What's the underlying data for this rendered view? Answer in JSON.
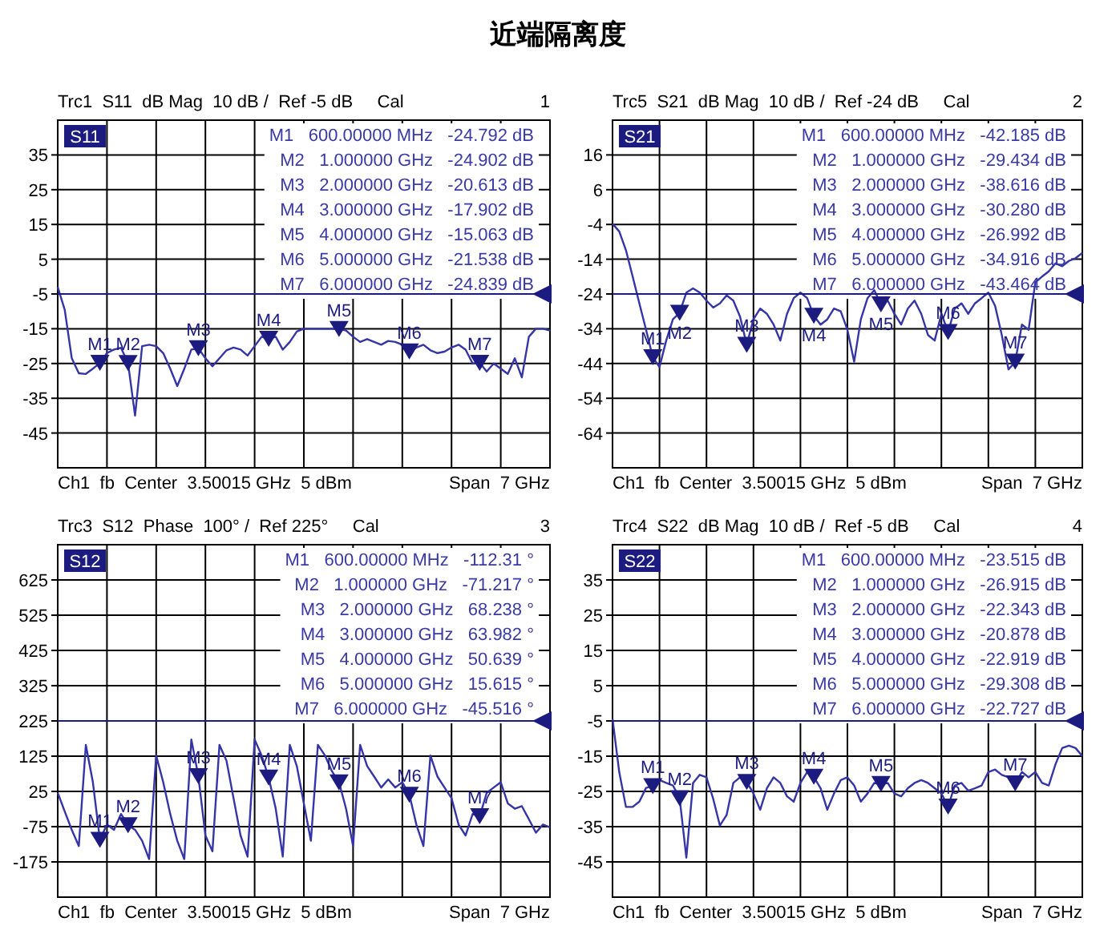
{
  "chart_data": [
    {
      "type": "other",
      "title": "近端隔离度"
    },
    {
      "type": "line",
      "title": "Trc1  S11  dB Mag  10 dB /  Ref -5 dB     Cal",
      "ylim": [
        -55,
        45
      ],
      "yticks": [
        35,
        25,
        15,
        5,
        -5,
        -15,
        -25,
        -35,
        -45
      ],
      "grid": true,
      "legend": "top left",
      "categories": [
        null,
        null,
        null,
        null,
        null,
        null,
        null,
        null,
        null,
        null,
        null,
        null,
        null,
        null,
        null,
        null,
        null,
        null,
        null,
        null,
        null,
        null,
        null,
        null,
        null,
        null,
        null,
        null,
        null,
        null,
        null,
        null,
        null,
        null,
        null,
        null,
        null,
        null,
        null,
        null,
        null,
        null,
        null,
        null,
        null,
        null,
        null,
        null,
        null,
        null,
        null,
        null,
        null,
        null,
        null,
        null,
        null,
        null,
        null,
        null,
        null,
        null,
        null,
        null,
        null,
        null,
        null,
        null,
        null,
        null,
        null
      ],
      "series": [
        {
          "name": "S11",
          "type": "line",
          "color": "#3535a8",
          "values": [
            -3,
            -9.6,
            -23.5,
            -27.8,
            -28,
            -26.5,
            -24.8,
            -22,
            -21,
            -20.5,
            -24.9,
            -40,
            -20,
            -19.6,
            -20,
            -22,
            -26.5,
            -31.5,
            -26.5,
            -21,
            -20.6,
            -23.5,
            -25.8,
            -23.5,
            -21.2,
            -20.4,
            -21,
            -22.7,
            -20,
            -17.3,
            -17.9,
            -17.3,
            -21,
            -18.8,
            -15.8,
            -15,
            -15,
            -15,
            -15,
            -15,
            -15.1,
            -15.5,
            -17.3,
            -18.8,
            -18,
            -18.8,
            -19.6,
            -18.5,
            -18.8,
            -19.6,
            -21.5,
            -20.4,
            -19.6,
            -21.2,
            -22,
            -21.6,
            -20.4,
            -19.6,
            -21,
            -25,
            -24.8,
            -27.3,
            -25,
            -26.5,
            -28,
            -23.5,
            -29,
            -17.3,
            -15,
            -15,
            -15.5
          ]
        },
        {
          "type": "scatter",
          "marker": "triangle",
          "color": "#1c1c80",
          "values": [
            null,
            null,
            null,
            null,
            null,
            null,
            -24.792,
            null,
            null,
            null,
            -24.902,
            null,
            null,
            null,
            null,
            null,
            null,
            null,
            null,
            null,
            -20.613,
            null,
            null,
            null,
            null,
            null,
            null,
            null,
            null,
            null,
            -17.902,
            null,
            null,
            null,
            null,
            null,
            null,
            null,
            null,
            null,
            -15.063,
            null,
            null,
            null,
            null,
            null,
            null,
            null,
            null,
            null,
            -21.538,
            null,
            null,
            null,
            null,
            null,
            null,
            null,
            null,
            null,
            -24.839,
            null,
            null,
            null,
            null,
            null,
            null,
            null,
            null,
            null,
            null
          ],
          "value_labels": [
            null,
            null,
            null,
            null,
            null,
            null,
            "M1",
            null,
            null,
            null,
            "M2",
            null,
            null,
            null,
            null,
            null,
            null,
            null,
            null,
            null,
            "M3",
            null,
            null,
            null,
            null,
            null,
            null,
            null,
            null,
            null,
            "M4",
            null,
            null,
            null,
            null,
            null,
            null,
            null,
            null,
            null,
            "M5",
            null,
            null,
            null,
            null,
            null,
            null,
            null,
            null,
            null,
            "M6",
            null,
            null,
            null,
            null,
            null,
            null,
            null,
            null,
            null,
            "M7",
            null,
            null,
            null,
            null,
            null,
            null,
            null,
            null,
            null,
            null
          ]
        }
      ],
      "ref_lines": [
        {
          "axis": "y",
          "value": -5,
          "color": "#1c1c80"
        }
      ],
      "annotations": [
        "1",
        "M1   600.00000 MHz   -24.792 dB",
        "M2   1.000000 GHz   -24.902 dB",
        "M3   2.000000 GHz   -20.613 dB",
        "M4   3.000000 GHz   -17.902 dB",
        "M5   4.000000 GHz   -15.063 dB",
        "M6   5.000000 GHz   -21.538 dB",
        "M7   6.000000 GHz   -24.839 dB",
        "Ch1  fb  Center  3.50015 GHz  5 dBm",
        "Span  7 GHz"
      ]
    },
    {
      "type": "line",
      "title": "Trc5  S21  dB Mag  10 dB /  Ref -24 dB     Cal",
      "ylim": [
        -74,
        26
      ],
      "yticks": [
        16,
        6,
        -4,
        -14,
        -24,
        -34,
        -44,
        -54,
        -64
      ],
      "grid": true,
      "legend": "top left",
      "categories": [
        null,
        null,
        null,
        null,
        null,
        null,
        null,
        null,
        null,
        null,
        null,
        null,
        null,
        null,
        null,
        null,
        null,
        null,
        null,
        null,
        null,
        null,
        null,
        null,
        null,
        null,
        null,
        null,
        null,
        null,
        null,
        null,
        null,
        null,
        null,
        null,
        null,
        null,
        null,
        null,
        null,
        null,
        null,
        null,
        null,
        null,
        null,
        null,
        null,
        null,
        null,
        null,
        null,
        null,
        null,
        null,
        null,
        null,
        null,
        null,
        null,
        null,
        null,
        null,
        null,
        null,
        null,
        null,
        null,
        null,
        null
      ],
      "series": [
        {
          "name": "S21",
          "type": "line",
          "color": "#3535a8",
          "values": [
            -3.8,
            -6,
            -11.4,
            -19,
            -26.7,
            -34.3,
            -42.2,
            -45,
            -37.4,
            -31.3,
            -29.4,
            -23.6,
            -22.4,
            -23.6,
            -25.9,
            -27.9,
            -26.7,
            -24.4,
            -25.9,
            -30.5,
            -38.6,
            -31.3,
            -28.2,
            -29.7,
            -32.8,
            -37.4,
            -29.7,
            -25.2,
            -23.6,
            -25.2,
            -30.3,
            -32.8,
            -31.3,
            -28.2,
            -29,
            -34.3,
            -43.5,
            -31.3,
            -25.2,
            -22.9,
            -27,
            -25.9,
            -29.7,
            -32.8,
            -28.2,
            -25.9,
            -29.7,
            -35.8,
            -37.4,
            -29.7,
            -34.9,
            -28.2,
            -26.7,
            -29.7,
            -26.7,
            -25.2,
            -23.6,
            -27.4,
            -35.8,
            -45.7,
            -43.5,
            -32.8,
            -34.3,
            -20.6,
            -19,
            -17.5,
            -15.2,
            -16,
            -14.5,
            -13.7,
            -12.2
          ]
        },
        {
          "type": "scatter",
          "marker": "triangle",
          "color": "#1c1c80",
          "values": [
            null,
            null,
            null,
            null,
            null,
            null,
            -42.185,
            null,
            null,
            null,
            -29.434,
            null,
            null,
            null,
            null,
            null,
            null,
            null,
            null,
            null,
            -38.616,
            null,
            null,
            null,
            null,
            null,
            null,
            null,
            null,
            null,
            -30.28,
            null,
            null,
            null,
            null,
            null,
            null,
            null,
            null,
            null,
            -26.992,
            null,
            null,
            null,
            null,
            null,
            null,
            null,
            null,
            null,
            -34.916,
            null,
            null,
            null,
            null,
            null,
            null,
            null,
            null,
            null,
            -43.464,
            null,
            null,
            null,
            null,
            null,
            null,
            null,
            null,
            null,
            null
          ],
          "value_labels": [
            null,
            null,
            null,
            null,
            null,
            null,
            "M1",
            null,
            null,
            null,
            "M2",
            null,
            null,
            null,
            null,
            null,
            null,
            null,
            null,
            null,
            "M3",
            null,
            null,
            null,
            null,
            null,
            null,
            null,
            null,
            null,
            "M4",
            null,
            null,
            null,
            null,
            null,
            null,
            null,
            null,
            null,
            "M5",
            null,
            null,
            null,
            null,
            null,
            null,
            null,
            null,
            null,
            "M6",
            null,
            null,
            null,
            null,
            null,
            null,
            null,
            null,
            null,
            "M7",
            null,
            null,
            null,
            null,
            null,
            null,
            null,
            null,
            null,
            null
          ]
        }
      ],
      "ref_lines": [
        {
          "axis": "y",
          "value": -24,
          "color": "#1c1c80"
        }
      ],
      "annotations": [
        "2",
        "M1   600.00000 MHz   -42.185 dB",
        "M2   1.000000 GHz   -29.434 dB",
        "M3   2.000000 GHz   -38.616 dB",
        "M4   3.000000 GHz   -30.280 dB",
        "M5   4.000000 GHz   -26.992 dB",
        "M6   5.000000 GHz   -34.916 dB",
        "M7   6.000000 GHz   -43.464 dB",
        "Ch1  fb  Center  3.50015 GHz  5 dBm",
        "Span  7 GHz"
      ]
    },
    {
      "type": "line",
      "title": "Trc3  S12  Phase  100° /  Ref 225°     Cal",
      "ylim": [
        -275,
        725
      ],
      "yticks": [
        625,
        525,
        425,
        325,
        225,
        125,
        25,
        -75,
        -175
      ],
      "grid": true,
      "legend": "top left",
      "categories": [
        null,
        null,
        null,
        null,
        null,
        null,
        null,
        null,
        null,
        null,
        null,
        null,
        null,
        null,
        null,
        null,
        null,
        null,
        null,
        null,
        null,
        null,
        null,
        null,
        null,
        null,
        null,
        null,
        null,
        null,
        null,
        null,
        null,
        null,
        null,
        null,
        null,
        null,
        null,
        null,
        null,
        null,
        null,
        null,
        null,
        null,
        null,
        null,
        null,
        null,
        null,
        null,
        null,
        null,
        null,
        null,
        null,
        null,
        null,
        null,
        null,
        null,
        null,
        null,
        null,
        null,
        null,
        null,
        null,
        null,
        null
      ],
      "series": [
        {
          "name": "S12",
          "type": "line",
          "color": "#3535a8",
          "values": [
            21,
            -32,
            -84,
            -130,
            157,
            51,
            -112,
            -69,
            -84,
            -39,
            -71,
            -84,
            -115,
            -167,
            127,
            51,
            -39,
            -115,
            -167,
            172,
            68,
            -100,
            -145,
            157,
            112,
            6,
            -100,
            -160,
            172,
            127,
            64,
            -24,
            -160,
            157,
            97,
            -9,
            -115,
            157,
            127,
            82,
            51,
            -24,
            -130,
            157,
            97,
            67,
            36,
            59,
            36,
            51,
            16,
            -69,
            -130,
            127,
            67,
            36,
            6,
            -69,
            -100,
            -39,
            -46,
            21,
            36,
            51,
            -9,
            -24,
            -17,
            -54,
            -92,
            -69,
            -77
          ]
        },
        {
          "type": "scatter",
          "marker": "triangle",
          "color": "#1c1c80",
          "values": [
            null,
            null,
            null,
            null,
            null,
            null,
            -112.31,
            null,
            null,
            null,
            -71.217,
            null,
            null,
            null,
            null,
            null,
            null,
            null,
            null,
            null,
            68.238,
            null,
            null,
            null,
            null,
            null,
            null,
            null,
            null,
            null,
            63.982,
            null,
            null,
            null,
            null,
            null,
            null,
            null,
            null,
            null,
            50.639,
            null,
            null,
            null,
            null,
            null,
            null,
            null,
            null,
            null,
            15.615,
            null,
            null,
            null,
            null,
            null,
            null,
            null,
            null,
            null,
            -45.516,
            null,
            null,
            null,
            null,
            null,
            null,
            null,
            null,
            null,
            null
          ],
          "value_labels": [
            null,
            null,
            null,
            null,
            null,
            null,
            "M1",
            null,
            null,
            null,
            "M2",
            null,
            null,
            null,
            null,
            null,
            null,
            null,
            null,
            null,
            "M3",
            null,
            null,
            null,
            null,
            null,
            null,
            null,
            null,
            null,
            "M4",
            null,
            null,
            null,
            null,
            null,
            null,
            null,
            null,
            null,
            "M5",
            null,
            null,
            null,
            null,
            null,
            null,
            null,
            null,
            null,
            "M6",
            null,
            null,
            null,
            null,
            null,
            null,
            null,
            null,
            null,
            "M7",
            null,
            null,
            null,
            null,
            null,
            null,
            null,
            null,
            null,
            null
          ]
        }
      ],
      "ref_lines": [
        {
          "axis": "y",
          "value": 225,
          "color": "#1c1c80"
        }
      ],
      "annotations": [
        "3",
        "M1   600.00000 MHz   -112.31 °",
        "M2   1.000000 GHz   -71.217 °",
        "M3   2.000000 GHz   68.238 °",
        "M4   3.000000 GHz   63.982 °",
        "M5   4.000000 GHz   50.639 °",
        "M6   5.000000 GHz   15.615 °",
        "M7   6.000000 GHz   -45.516 °",
        "Ch1  fb  Center  3.50015 GHz  5 dBm",
        "Span  7 GHz"
      ]
    },
    {
      "type": "line",
      "title": "Trc4  S22  dB Mag  10 dB /  Ref -5 dB     Cal",
      "ylim": [
        -55,
        45
      ],
      "yticks": [
        35,
        25,
        15,
        5,
        -5,
        -15,
        -25,
        -35,
        -45
      ],
      "grid": true,
      "legend": "top left",
      "categories": [
        null,
        null,
        null,
        null,
        null,
        null,
        null,
        null,
        null,
        null,
        null,
        null,
        null,
        null,
        null,
        null,
        null,
        null,
        null,
        null,
        null,
        null,
        null,
        null,
        null,
        null,
        null,
        null,
        null,
        null,
        null,
        null,
        null,
        null,
        null,
        null,
        null,
        null,
        null,
        null,
        null,
        null,
        null,
        null,
        null,
        null,
        null,
        null,
        null,
        null,
        null,
        null,
        null,
        null,
        null,
        null,
        null,
        null,
        null,
        null,
        null,
        null,
        null,
        null,
        null,
        null,
        null,
        null,
        null,
        null,
        null
      ],
      "series": [
        {
          "name": "S22",
          "type": "line",
          "color": "#3535a8",
          "values": [
            -4.4,
            -19.5,
            -29.4,
            -29.4,
            -27.9,
            -24,
            -23.5,
            -21.8,
            -22.6,
            -23.3,
            -26.9,
            -43.8,
            -22.6,
            -20.3,
            -21,
            -27.1,
            -34.7,
            -31.7,
            -22.6,
            -21,
            -22.3,
            -25.6,
            -30.2,
            -24.1,
            -21,
            -22.6,
            -26.4,
            -27.9,
            -22.6,
            -19.5,
            -20.9,
            -24.1,
            -30.2,
            -25.6,
            -21.8,
            -21,
            -23.3,
            -27.9,
            -25.6,
            -22.6,
            -22.9,
            -22.6,
            -25.6,
            -26.4,
            -24.1,
            -22.6,
            -21.8,
            -22.6,
            -24.1,
            -25.6,
            -29.3,
            -23.3,
            -22.6,
            -24.8,
            -24.1,
            -23.3,
            -19.5,
            -18.8,
            -20.3,
            -21,
            -22.7,
            -19.5,
            -21,
            -19.5,
            -22.6,
            -23.3,
            -17.3,
            -12.7,
            -12,
            -12.7,
            -15
          ]
        },
        {
          "type": "scatter",
          "marker": "triangle",
          "color": "#1c1c80",
          "values": [
            null,
            null,
            null,
            null,
            null,
            null,
            -23.515,
            null,
            null,
            null,
            -26.915,
            null,
            null,
            null,
            null,
            null,
            null,
            null,
            null,
            null,
            -22.343,
            null,
            null,
            null,
            null,
            null,
            null,
            null,
            null,
            null,
            -20.878,
            null,
            null,
            null,
            null,
            null,
            null,
            null,
            null,
            null,
            -22.919,
            null,
            null,
            null,
            null,
            null,
            null,
            null,
            null,
            null,
            -29.308,
            null,
            null,
            null,
            null,
            null,
            null,
            null,
            null,
            null,
            -22.727,
            null,
            null,
            null,
            null,
            null,
            null,
            null,
            null,
            null,
            null
          ],
          "value_labels": [
            null,
            null,
            null,
            null,
            null,
            null,
            "M1",
            null,
            null,
            null,
            "M2",
            null,
            null,
            null,
            null,
            null,
            null,
            null,
            null,
            null,
            "M3",
            null,
            null,
            null,
            null,
            null,
            null,
            null,
            null,
            null,
            "M4",
            null,
            null,
            null,
            null,
            null,
            null,
            null,
            null,
            null,
            "M5",
            null,
            null,
            null,
            null,
            null,
            null,
            null,
            null,
            null,
            "M6",
            null,
            null,
            null,
            null,
            null,
            null,
            null,
            null,
            null,
            "M7",
            null,
            null,
            null,
            null,
            null,
            null,
            null,
            null,
            null,
            null
          ]
        }
      ],
      "ref_lines": [
        {
          "axis": "y",
          "value": -5,
          "color": "#1c1c80"
        }
      ],
      "annotations": [
        "4",
        "M1   600.00000 MHz   -23.515 dB",
        "M2   1.000000 GHz   -26.915 dB",
        "M3   2.000000 GHz   -22.343 dB",
        "M4   3.000000 GHz   -20.878 dB",
        "M5   4.000000 GHz   -22.919 dB",
        "M6   5.000000 GHz   -29.308 dB",
        "M7   6.000000 GHz   -22.727 dB",
        "Ch1  fb  Center  3.50015 GHz  5 dBm",
        "Span  7 GHz"
      ]
    }
  ]
}
